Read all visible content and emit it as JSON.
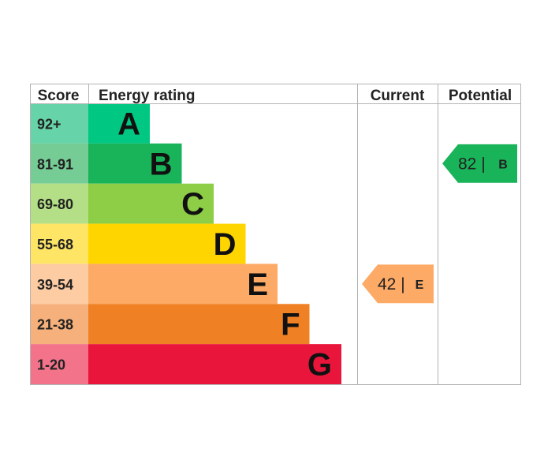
{
  "chart_data": {
    "type": "table",
    "headers": {
      "score": "Score",
      "rating": "Energy rating",
      "current": "Current",
      "potential": "Potential"
    },
    "bands": [
      {
        "score": "92+",
        "letter": "A",
        "color": "#00c781",
        "score_bg": "#66d4a8"
      },
      {
        "score": "81-91",
        "letter": "B",
        "color": "#19b459",
        "score_bg": "#75cc95"
      },
      {
        "score": "69-80",
        "letter": "C",
        "color": "#8dce46",
        "score_bg": "#b4df86"
      },
      {
        "score": "55-68",
        "letter": "D",
        "color": "#ffd500",
        "score_bg": "#ffe566"
      },
      {
        "score": "39-54",
        "letter": "E",
        "color": "#fcaa65",
        "score_bg": "#fdcca3"
      },
      {
        "score": "21-38",
        "letter": "F",
        "color": "#ef8023",
        "score_bg": "#f5b07b"
      },
      {
        "score": "1-20",
        "letter": "G",
        "color": "#e9153b",
        "score_bg": "#f2738a"
      }
    ],
    "current": {
      "value": 42,
      "label": "42 |",
      "letter": "E",
      "color": "#fcaa65"
    },
    "potential": {
      "value": 82,
      "label": "82 |",
      "letter": "B",
      "color": "#19b459"
    }
  }
}
